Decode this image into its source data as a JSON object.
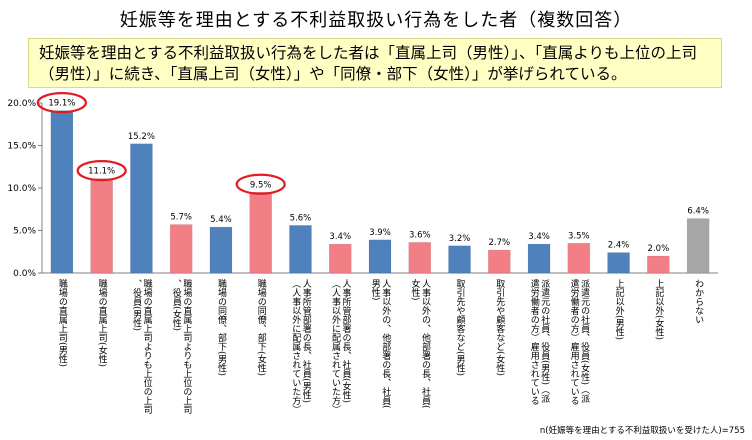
{
  "title": "妊娠等を理由とする不利益取扱い行為をした者（複数回答）",
  "summary": "妊娠等を理由とする不利益取扱い行為をした者は「直属上司（男性）」、「直属よりも上位の上司（男性）」に続き、「直属上司（女性）」や「同僚・部下（女性）」が挙げられている。",
  "footnote": "n(妊娠等を理由とする不利益取扱いを受けた人)=755",
  "colors": {
    "male": "#4f81bd",
    "female": "#f27f86",
    "other": "#a6a6a6",
    "highlight": "#e31b23",
    "summary_bg": "#ffffc4"
  },
  "chart_data": {
    "type": "bar",
    "ylim": [
      0,
      20
    ],
    "yticks": [
      "0.0%",
      "5.0%",
      "10.0%",
      "15.0%",
      "20.0%"
    ],
    "grid": false,
    "bars": [
      {
        "value": 19.1,
        "label": "19.1%",
        "category": "職場の直属上司(男性)",
        "group": "male",
        "circled": true
      },
      {
        "value": 11.1,
        "label": "11.1%",
        "category": "職場の直属上司(女性)",
        "group": "female",
        "circled": true
      },
      {
        "value": 15.2,
        "label": "15.2%",
        "category": "職場の直属上司よりも上位の上司、役員(男性)",
        "group": "male",
        "circled": false
      },
      {
        "value": 5.7,
        "label": "5.7%",
        "category": "職場の直属上司よりも上位の上司、役員(女性)",
        "group": "female",
        "circled": false
      },
      {
        "value": 5.4,
        "label": "5.4%",
        "category": "職場の同僚、部下(男性)",
        "group": "male",
        "circled": false
      },
      {
        "value": 9.5,
        "label": "9.5%",
        "category": "職場の同僚、部下(女性)",
        "group": "female",
        "circled": true
      },
      {
        "value": 5.6,
        "label": "5.6%",
        "category": "人事所管部署の長、社員(男性)（人事以外に配属されていた方）",
        "group": "male",
        "circled": false
      },
      {
        "value": 3.4,
        "label": "3.4%",
        "category": "人事所管部署の長、社員(女性)（人事以外に配属されていた方）",
        "group": "female",
        "circled": false
      },
      {
        "value": 3.9,
        "label": "3.9%",
        "category": "人事以外の、他部署の長、社員(男性)",
        "group": "male",
        "circled": false
      },
      {
        "value": 3.6,
        "label": "3.6%",
        "category": "人事以外の、他部署の長、社員(女性)",
        "group": "female",
        "circled": false
      },
      {
        "value": 3.2,
        "label": "3.2%",
        "category": "取引先や顧客など(男性)",
        "group": "male",
        "circled": false
      },
      {
        "value": 2.7,
        "label": "2.7%",
        "category": "取引先や顧客など(女性)",
        "group": "female",
        "circled": false
      },
      {
        "value": 3.4,
        "label": "3.4%",
        "category": "派遣元の社員、役員(男性)（派遣労働者の方）雇用されている",
        "group": "male",
        "circled": false
      },
      {
        "value": 3.5,
        "label": "3.5%",
        "category": "派遣元の社員、役員(女性)（派遣労働者の方）雇用されている",
        "group": "female",
        "circled": false
      },
      {
        "value": 2.4,
        "label": "2.4%",
        "category": "上記以外(男性)",
        "group": "male",
        "circled": false
      },
      {
        "value": 2.0,
        "label": "2.0%",
        "category": "上記以外(女性)",
        "group": "female",
        "circled": false
      },
      {
        "value": 6.4,
        "label": "6.4%",
        "category": "わからない",
        "group": "other",
        "circled": false
      }
    ]
  }
}
